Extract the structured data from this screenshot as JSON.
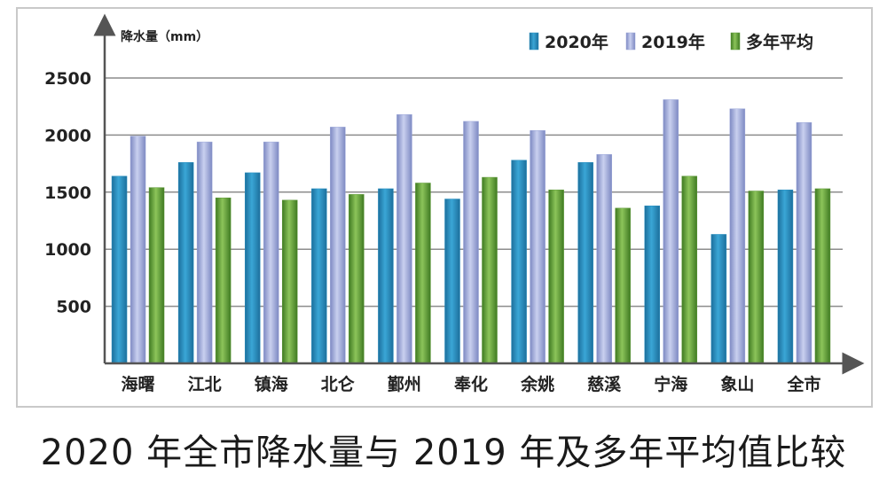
{
  "caption": "2020 年全市降水量与 2019 年及多年平均值比较",
  "chart_data": {
    "type": "bar",
    "ylabel": "降水量（mm）",
    "xlabel": "",
    "ylim": [
      0,
      2500
    ],
    "yticks": [
      500,
      1000,
      1500,
      2000,
      2500
    ],
    "grid": true,
    "legend_position": "top-right",
    "categories": [
      "海曙",
      "江北",
      "镇海",
      "北仑",
      "鄞州",
      "奉化",
      "余姚",
      "慈溪",
      "宁海",
      "象山",
      "全市"
    ],
    "series": [
      {
        "name": "2020年",
        "color": "#2a8fc0",
        "values": [
          1640,
          1760,
          1670,
          1530,
          1530,
          1440,
          1780,
          1760,
          1380,
          1130,
          1520
        ]
      },
      {
        "name": "2019年",
        "color": "#9aa6d8",
        "values": [
          1990,
          1940,
          1940,
          2070,
          2180,
          2120,
          2040,
          1830,
          2310,
          2230,
          2110
        ]
      },
      {
        "name": "多年平均",
        "color": "#5f9a3a",
        "values": [
          1540,
          1450,
          1430,
          1480,
          1580,
          1630,
          1520,
          1360,
          1640,
          1510,
          1530
        ]
      }
    ]
  }
}
